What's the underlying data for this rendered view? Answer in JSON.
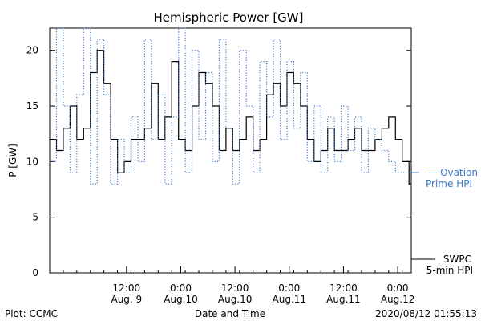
{
  "chart_data": {
    "type": "line",
    "title": "Hemispheric Power [GW]",
    "xlabel": "Date and Time",
    "ylabel": "P [GW]",
    "ylim": [
      0,
      22
    ],
    "xlim": [
      "2020-08-08T19:00",
      "2020-08-12T03:00"
    ],
    "yticks": [
      0,
      5,
      10,
      15,
      20
    ],
    "xticks": [
      {
        "at": "2020-08-09T12:00",
        "line1": "12:00",
        "line2": "Aug. 9"
      },
      {
        "at": "2020-08-10T00:00",
        "line1": "0:00",
        "line2": "Aug.10"
      },
      {
        "at": "2020-08-10T12:00",
        "line1": "12:00",
        "line2": "Aug.10"
      },
      {
        "at": "2020-08-11T00:00",
        "line1": "0:00",
        "line2": "Aug.11"
      },
      {
        "at": "2020-08-11T12:00",
        "line1": "12:00",
        "line2": "Aug.11"
      },
      {
        "at": "2020-08-12T00:00",
        "line1": "0:00",
        "line2": "Aug.12"
      }
    ],
    "grid": false,
    "series": [
      {
        "name": "SWPC 5-min HPI",
        "legend_line1": "SWPC",
        "legend_line2": "5-min HPI",
        "color": "#000000",
        "style": "solid",
        "x": [
          "2020-08-08T19:00",
          "2020-08-08T20:30",
          "2020-08-08T22:00",
          "2020-08-08T23:30",
          "2020-08-09T01:00",
          "2020-08-09T02:30",
          "2020-08-09T04:00",
          "2020-08-09T05:30",
          "2020-08-09T07:00",
          "2020-08-09T08:30",
          "2020-08-09T10:00",
          "2020-08-09T11:30",
          "2020-08-09T13:00",
          "2020-08-09T14:30",
          "2020-08-09T16:00",
          "2020-08-09T17:30",
          "2020-08-09T19:00",
          "2020-08-09T20:30",
          "2020-08-09T22:00",
          "2020-08-09T23:30",
          "2020-08-10T01:00",
          "2020-08-10T02:30",
          "2020-08-10T04:00",
          "2020-08-10T05:30",
          "2020-08-10T07:00",
          "2020-08-10T08:30",
          "2020-08-10T10:00",
          "2020-08-10T11:30",
          "2020-08-10T13:00",
          "2020-08-10T14:30",
          "2020-08-10T16:00",
          "2020-08-10T17:30",
          "2020-08-10T19:00",
          "2020-08-10T20:30",
          "2020-08-10T22:00",
          "2020-08-10T23:30",
          "2020-08-11T01:00",
          "2020-08-11T02:30",
          "2020-08-11T04:00",
          "2020-08-11T05:30",
          "2020-08-11T07:00",
          "2020-08-11T08:30",
          "2020-08-11T10:00",
          "2020-08-11T11:30",
          "2020-08-11T13:00",
          "2020-08-11T14:30",
          "2020-08-11T16:00",
          "2020-08-11T17:30",
          "2020-08-11T19:00",
          "2020-08-11T20:30",
          "2020-08-11T22:00",
          "2020-08-11T23:30",
          "2020-08-12T01:00",
          "2020-08-12T02:30"
        ],
        "y": [
          12,
          11,
          13,
          15,
          12,
          13,
          18,
          20,
          17,
          12,
          9,
          10,
          12,
          12,
          13,
          17,
          12,
          14,
          19,
          12,
          11,
          15,
          18,
          17,
          15,
          11,
          13,
          11,
          12,
          14,
          11,
          12,
          16,
          17,
          15,
          18,
          17,
          15,
          12,
          10,
          11,
          13,
          11,
          11,
          12,
          13,
          11,
          11,
          12,
          13,
          14,
          12,
          10,
          8
        ]
      },
      {
        "name": "Ovation Prime HPI",
        "legend_line1": "— Ovation",
        "legend_line2": "Prime HPI",
        "color": "#3b78c8",
        "style": "dotted",
        "x": [
          "2020-08-08T19:00",
          "2020-08-08T20:30",
          "2020-08-08T22:00",
          "2020-08-08T23:30",
          "2020-08-09T01:00",
          "2020-08-09T02:30",
          "2020-08-09T04:00",
          "2020-08-09T05:30",
          "2020-08-09T07:00",
          "2020-08-09T08:30",
          "2020-08-09T10:00",
          "2020-08-09T11:30",
          "2020-08-09T13:00",
          "2020-08-09T14:30",
          "2020-08-09T16:00",
          "2020-08-09T17:30",
          "2020-08-09T19:00",
          "2020-08-09T20:30",
          "2020-08-09T22:00",
          "2020-08-09T23:30",
          "2020-08-10T01:00",
          "2020-08-10T02:30",
          "2020-08-10T04:00",
          "2020-08-10T05:30",
          "2020-08-10T07:00",
          "2020-08-10T08:30",
          "2020-08-10T10:00",
          "2020-08-10T11:30",
          "2020-08-10T13:00",
          "2020-08-10T14:30",
          "2020-08-10T16:00",
          "2020-08-10T17:30",
          "2020-08-10T19:00",
          "2020-08-10T20:30",
          "2020-08-10T22:00",
          "2020-08-10T23:30",
          "2020-08-11T01:00",
          "2020-08-11T02:30",
          "2020-08-11T04:00",
          "2020-08-11T05:30",
          "2020-08-11T07:00",
          "2020-08-11T08:30",
          "2020-08-11T10:00",
          "2020-08-11T11:30",
          "2020-08-11T13:00",
          "2020-08-11T14:30",
          "2020-08-11T16:00",
          "2020-08-11T17:30",
          "2020-08-11T19:00",
          "2020-08-11T20:30",
          "2020-08-11T22:00",
          "2020-08-11T23:30",
          "2020-08-12T01:00",
          "2020-08-12T02:30"
        ],
        "y": [
          10,
          22,
          15,
          9,
          16,
          22,
          8,
          21,
          16,
          8,
          12,
          9,
          14,
          10,
          21,
          12,
          16,
          8,
          14,
          22,
          9,
          20,
          12,
          18,
          10,
          21,
          13,
          8,
          20,
          15,
          9,
          19,
          14,
          21,
          12,
          19,
          13,
          18,
          10,
          15,
          9,
          14,
          10,
          15,
          11,
          14,
          9,
          13,
          12,
          11,
          10,
          9,
          9,
          9
        ]
      }
    ]
  },
  "footer": {
    "left": "Plot: CCMC",
    "right": "2020/08/12 01:55:13"
  }
}
